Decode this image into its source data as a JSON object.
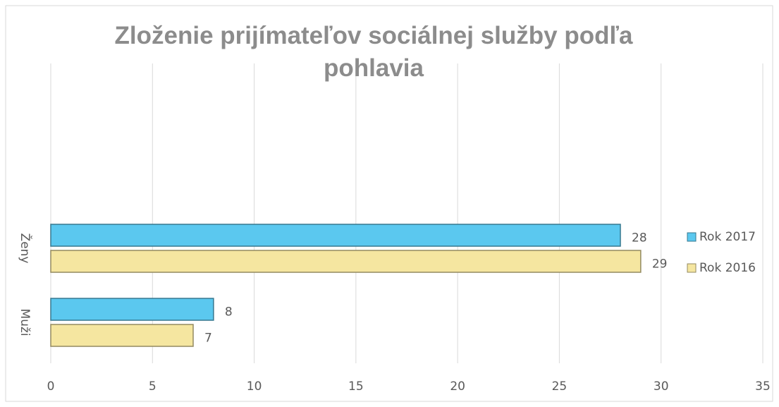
{
  "chart_data": {
    "type": "hbar",
    "title": "Zloženie prijímateľov sociálnej služby podľa pohlavia",
    "categories": [
      "Ženy",
      "Muži"
    ],
    "series": [
      {
        "name": "Rok 2017",
        "color": "#5bc8ef",
        "values": [
          28,
          8
        ]
      },
      {
        "name": "Rok 2016",
        "color": "#f5e6a0",
        "values": [
          29,
          7
        ]
      }
    ],
    "xlim": [
      0,
      35
    ],
    "xticks": [
      0,
      5,
      10,
      15,
      20,
      25,
      30,
      35
    ],
    "grid": true,
    "legend": "right"
  }
}
